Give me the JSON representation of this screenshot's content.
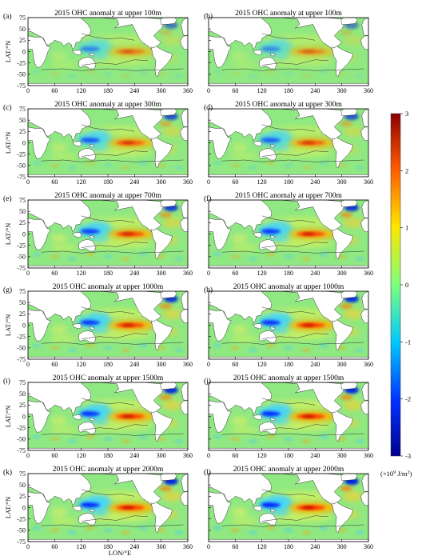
{
  "figure": {
    "ylabel": "LAT/°N",
    "xlabel": "LON/°E",
    "unit_prefix": "(×10",
    "unit_exp": "9",
    "unit_suffix": " J/m",
    "unit_sq": "2",
    "unit_close": ")"
  },
  "chart_data": {
    "type": "heatmap",
    "x_ticks": [
      0,
      60,
      120,
      180,
      240,
      300,
      360
    ],
    "y_ticks": [
      75,
      50,
      25,
      0,
      -25,
      -50,
      -75
    ],
    "xlim": [
      0,
      360
    ],
    "ylim": [
      -75,
      75
    ],
    "colorbar": {
      "range": [
        -3,
        3
      ],
      "ticks": [
        3,
        2,
        1,
        0,
        -1,
        -2,
        -3
      ],
      "colors": [
        "#00008f",
        "#0030ff",
        "#00c8ff",
        "#7cff7c",
        "#ffe600",
        "#ff5a00",
        "#8c0000"
      ]
    },
    "panels": [
      {
        "label": "(a)",
        "title": "2015 OHC anomaly at upper 100m",
        "depth": 100,
        "intensity": 0.35
      },
      {
        "label": "(b)",
        "title": "2015 OHC anomaly at upper 100m",
        "depth": 100,
        "intensity": 0.3
      },
      {
        "label": "(c)",
        "title": "2015 OHC anomaly at upper 300m",
        "depth": 300,
        "intensity": 0.65
      },
      {
        "label": "(d)",
        "title": "2015 OHC anomaly at upper 300m",
        "depth": 300,
        "intensity": 0.6
      },
      {
        "label": "(e)",
        "title": "2015 OHC anomaly at upper 700m",
        "depth": 700,
        "intensity": 0.8
      },
      {
        "label": "(f)",
        "title": "2015 OHC anomaly at upper 700m",
        "depth": 700,
        "intensity": 0.85
      },
      {
        "label": "(g)",
        "title": "2015 OHC anomaly at upper 1000m",
        "depth": 1000,
        "intensity": 0.85
      },
      {
        "label": "(h)",
        "title": "2015 OHC anomaly at upper 1000m",
        "depth": 1000,
        "intensity": 0.9
      },
      {
        "label": "(i)",
        "title": "2015 OHC anomaly at upper 1500m",
        "depth": 1500,
        "intensity": 0.9
      },
      {
        "label": "(j)",
        "title": "2015 OHC anomaly at upper 1500m",
        "depth": 1500,
        "intensity": 0.95
      },
      {
        "label": "(k)",
        "title": "2015 OHC anomaly at upper 2000m",
        "depth": 2000,
        "intensity": 0.95
      },
      {
        "label": "(l)",
        "title": "2015 OHC anomaly at upper 2000m",
        "depth": 2000,
        "intensity": 1.0
      }
    ]
  }
}
